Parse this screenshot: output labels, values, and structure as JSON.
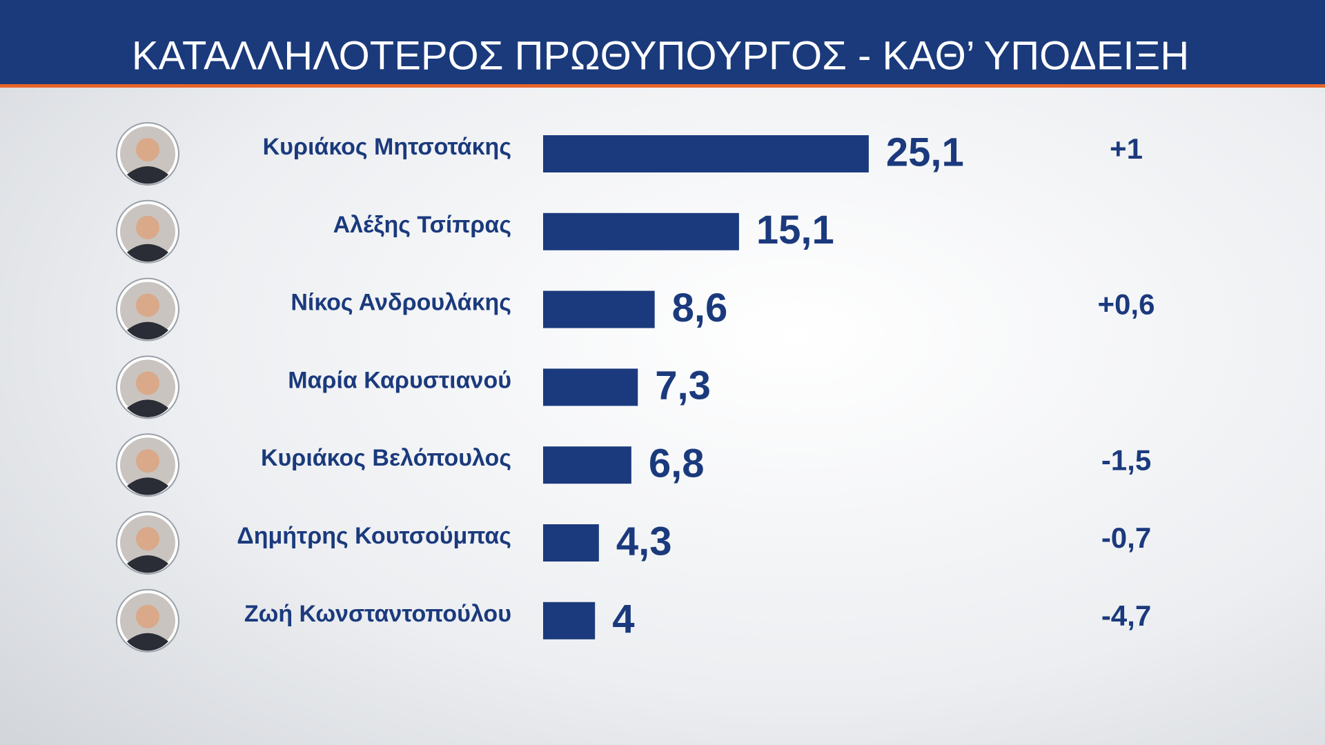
{
  "chart_data": {
    "type": "bar",
    "orientation": "horizontal",
    "title": "ΚΑΤΑΛΛΗΛΟΤΕΡΟΣ  ΠΡΩΘΥΠΟΥΡΓΟΣ - ΚΑΘ’ ΥΠΟΔΕΙΞΗ",
    "categories": [
      "Κυριάκος Μητσοτάκης",
      "Αλέξης Τσίπρας",
      "Νίκος Ανδρουλάκης",
      "Μαρία Καρυστιανού",
      "Κυριάκος Βελόπουλος",
      "Δημήτρης Κουτσούμπας",
      "Ζωή Κωνσταντοπούλου"
    ],
    "values": [
      25.1,
      15.1,
      8.6,
      7.3,
      6.8,
      4.3,
      4
    ],
    "value_labels": [
      "25,1",
      "15,1",
      "8,6",
      "7,3",
      "6,8",
      "4,3",
      "4"
    ],
    "changes": [
      {
        "value": 1,
        "label": "+1"
      },
      null,
      {
        "value": 0.6,
        "label": "+0,6"
      },
      null,
      {
        "value": -1.5,
        "label": "-1,5"
      },
      {
        "value": -0.7,
        "label": "-0,7"
      },
      {
        "value": -4.7,
        "label": "-4,7"
      }
    ],
    "color": "#1b3a7d"
  }
}
